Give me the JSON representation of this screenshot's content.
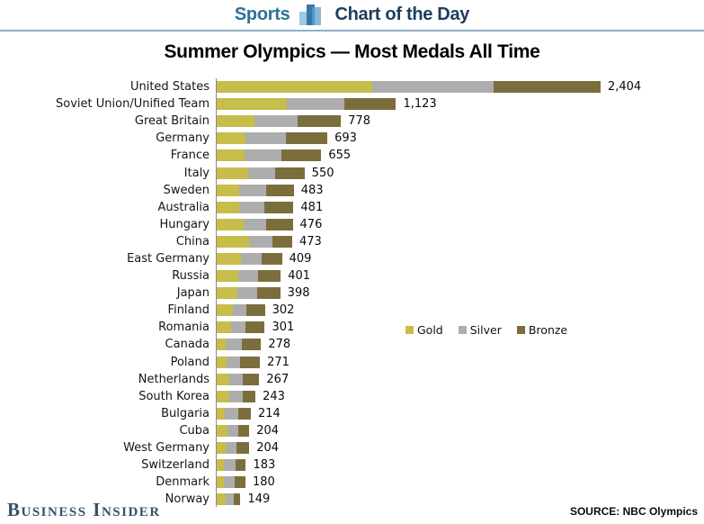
{
  "header": {
    "left": "Sports",
    "right": "Chart of the Day"
  },
  "title": "Summer Olympics — Most Medals All Time",
  "colors": {
    "gold": "#c6bd4a",
    "silver": "#adadad",
    "bronze": "#7c6e3c",
    "header_sports": "#2d7296",
    "header_chart": "#1e3d5c",
    "rule": "#8fb0c6",
    "brand": "#33526b"
  },
  "legend": [
    {
      "label": "Gold",
      "color": "#c6bd4a"
    },
    {
      "label": "Silver",
      "color": "#adadad"
    },
    {
      "label": "Bronze",
      "color": "#7c6e3c"
    }
  ],
  "footer": {
    "brand": "Business Insider",
    "source": "SOURCE: NBC Olympics"
  },
  "chart_data": {
    "type": "bar",
    "orientation": "horizontal",
    "stacked": true,
    "title": "Summer Olympics — Most Medals All Time",
    "xlabel": "",
    "ylabel": "",
    "xlim": [
      0,
      2404
    ],
    "grid": false,
    "legend_position": "middle-right",
    "categories": [
      "United States",
      "Soviet Union/Unified Team",
      "Great Britain",
      "Germany",
      "France",
      "Italy",
      "Sweden",
      "Australia",
      "Hungary",
      "China",
      "East Germany",
      "Russia",
      "Japan",
      "Finland",
      "Romania",
      "Canada",
      "Poland",
      "Netherlands",
      "South Korea",
      "Bulgaria",
      "Cuba",
      "West Germany",
      "Switzerland",
      "Denmark",
      "Norway"
    ],
    "series": [
      {
        "name": "Gold",
        "values": [
          976,
          440,
          236,
          182,
          175,
          198,
          143,
          141,
          167,
          201,
          153,
          134,
          130,
          101,
          88,
          59,
          64,
          77,
          81,
          51,
          67,
          56,
          46,
          43,
          56
        ]
      },
      {
        "name": "Silver",
        "values": [
          758,
          357,
          272,
          250,
          232,
          166,
          164,
          157,
          144,
          146,
          129,
          123,
          126,
          84,
          94,
          99,
          82,
          85,
          82,
          85,
          67,
          67,
          72,
          68,
          49
        ]
      },
      {
        "name": "Bronze",
        "values": [
          670,
          326,
          270,
          261,
          248,
          186,
          176,
          183,
          165,
          126,
          127,
          144,
          142,
          117,
          119,
          120,
          125,
          105,
          80,
          78,
          70,
          81,
          65,
          69,
          44
        ]
      }
    ],
    "totals": [
      2404,
      1123,
      778,
      693,
      655,
      550,
      483,
      481,
      476,
      473,
      409,
      401,
      398,
      302,
      301,
      278,
      271,
      267,
      243,
      214,
      204,
      204,
      183,
      180,
      149
    ],
    "total_labels": [
      "2,404",
      "1,123",
      "778",
      "693",
      "655",
      "550",
      "483",
      "481",
      "476",
      "473",
      "409",
      "401",
      "398",
      "302",
      "301",
      "278",
      "271",
      "267",
      "243",
      "214",
      "204",
      "204",
      "183",
      "180",
      "149"
    ],
    "note": "Gold/Silver/Bronze splits estimated from bar segment lengths"
  }
}
